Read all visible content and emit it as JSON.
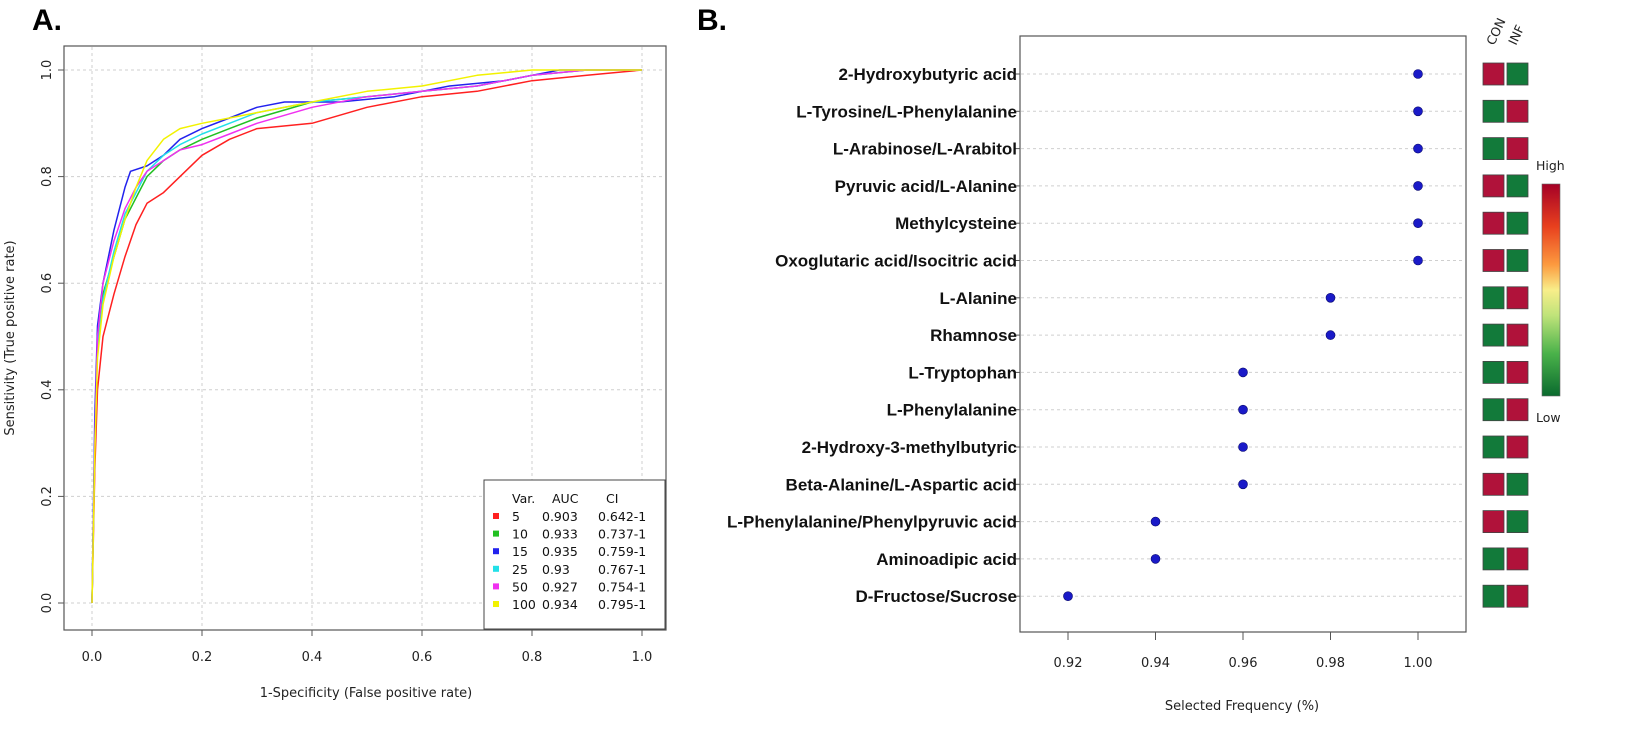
{
  "panels": {
    "a_label": "A.",
    "b_label": "B."
  },
  "chart_data": [
    {
      "type": "line",
      "title": "",
      "xlabel": "1-Specificity (False positive rate)",
      "ylabel": "Sensitivity (True positive rate)",
      "xlim": [
        0,
        1
      ],
      "ylim": [
        0,
        1
      ],
      "xticks": [
        "0.0",
        "0.2",
        "0.4",
        "0.6",
        "0.8",
        "1.0"
      ],
      "yticks": [
        "0.0",
        "0.2",
        "0.4",
        "0.6",
        "0.8",
        "1.0"
      ],
      "grid": true,
      "legend_position": "bottom-right",
      "legend_header": {
        "var": "Var.",
        "auc": "AUC",
        "ci": "CI"
      },
      "series": [
        {
          "name": "5",
          "auc": "0.903",
          "ci": "0.642-1",
          "color": "#ff2020",
          "points": [
            [
              0,
              0
            ],
            [
              0.005,
              0.25
            ],
            [
              0.01,
              0.4
            ],
            [
              0.02,
              0.5
            ],
            [
              0.04,
              0.58
            ],
            [
              0.06,
              0.65
            ],
            [
              0.08,
              0.71
            ],
            [
              0.1,
              0.75
            ],
            [
              0.13,
              0.77
            ],
            [
              0.16,
              0.8
            ],
            [
              0.2,
              0.84
            ],
            [
              0.25,
              0.87
            ],
            [
              0.3,
              0.89
            ],
            [
              0.4,
              0.9
            ],
            [
              0.5,
              0.93
            ],
            [
              0.6,
              0.95
            ],
            [
              0.7,
              0.96
            ],
            [
              0.8,
              0.98
            ],
            [
              0.9,
              0.99
            ],
            [
              1,
              1
            ]
          ]
        },
        {
          "name": "10",
          "auc": "0.933",
          "ci": "0.737-1",
          "color": "#22c022",
          "points": [
            [
              0,
              0
            ],
            [
              0.005,
              0.3
            ],
            [
              0.01,
              0.5
            ],
            [
              0.02,
              0.58
            ],
            [
              0.04,
              0.65
            ],
            [
              0.06,
              0.72
            ],
            [
              0.08,
              0.76
            ],
            [
              0.1,
              0.8
            ],
            [
              0.13,
              0.83
            ],
            [
              0.16,
              0.85
            ],
            [
              0.2,
              0.87
            ],
            [
              0.25,
              0.89
            ],
            [
              0.3,
              0.91
            ],
            [
              0.4,
              0.94
            ],
            [
              0.5,
              0.95
            ],
            [
              0.6,
              0.96
            ],
            [
              0.7,
              0.97
            ],
            [
              0.8,
              0.99
            ],
            [
              0.9,
              1
            ],
            [
              1,
              1
            ]
          ]
        },
        {
          "name": "15",
          "auc": "0.935",
          "ci": "0.759-1",
          "color": "#2222ee",
          "points": [
            [
              0,
              0
            ],
            [
              0.005,
              0.35
            ],
            [
              0.01,
              0.52
            ],
            [
              0.02,
              0.6
            ],
            [
              0.04,
              0.7
            ],
            [
              0.06,
              0.78
            ],
            [
              0.07,
              0.81
            ],
            [
              0.1,
              0.82
            ],
            [
              0.13,
              0.84
            ],
            [
              0.16,
              0.87
            ],
            [
              0.2,
              0.89
            ],
            [
              0.25,
              0.91
            ],
            [
              0.3,
              0.93
            ],
            [
              0.35,
              0.94
            ],
            [
              0.45,
              0.94
            ],
            [
              0.55,
              0.95
            ],
            [
              0.65,
              0.97
            ],
            [
              0.75,
              0.98
            ],
            [
              0.85,
              1
            ],
            [
              1,
              1
            ]
          ]
        },
        {
          "name": "25",
          "auc": "0.93",
          "ci": "0.767-1",
          "color": "#22e0e8",
          "points": [
            [
              0,
              0
            ],
            [
              0.005,
              0.3
            ],
            [
              0.01,
              0.48
            ],
            [
              0.02,
              0.57
            ],
            [
              0.04,
              0.66
            ],
            [
              0.06,
              0.73
            ],
            [
              0.08,
              0.77
            ],
            [
              0.1,
              0.81
            ],
            [
              0.13,
              0.84
            ],
            [
              0.16,
              0.86
            ],
            [
              0.2,
              0.88
            ],
            [
              0.25,
              0.9
            ],
            [
              0.3,
              0.92
            ],
            [
              0.4,
              0.94
            ],
            [
              0.5,
              0.95
            ],
            [
              0.6,
              0.96
            ],
            [
              0.7,
              0.97
            ],
            [
              0.8,
              0.99
            ],
            [
              0.9,
              1
            ],
            [
              1,
              1
            ]
          ]
        },
        {
          "name": "50",
          "auc": "0.927",
          "ci": "0.754-1",
          "color": "#f030f0",
          "points": [
            [
              0,
              0
            ],
            [
              0.005,
              0.3
            ],
            [
              0.01,
              0.5
            ],
            [
              0.02,
              0.6
            ],
            [
              0.04,
              0.68
            ],
            [
              0.06,
              0.74
            ],
            [
              0.08,
              0.78
            ],
            [
              0.1,
              0.81
            ],
            [
              0.13,
              0.83
            ],
            [
              0.16,
              0.85
            ],
            [
              0.2,
              0.86
            ],
            [
              0.25,
              0.88
            ],
            [
              0.3,
              0.9
            ],
            [
              0.4,
              0.93
            ],
            [
              0.5,
              0.95
            ],
            [
              0.6,
              0.96
            ],
            [
              0.7,
              0.97
            ],
            [
              0.8,
              0.99
            ],
            [
              0.9,
              1
            ],
            [
              1,
              1
            ]
          ]
        },
        {
          "name": "100",
          "auc": "0.934",
          "ci": "0.795-1",
          "color": "#f2f200",
          "points": [
            [
              0,
              0
            ],
            [
              0.005,
              0.28
            ],
            [
              0.01,
              0.46
            ],
            [
              0.02,
              0.56
            ],
            [
              0.04,
              0.65
            ],
            [
              0.06,
              0.72
            ],
            [
              0.08,
              0.78
            ],
            [
              0.1,
              0.83
            ],
            [
              0.13,
              0.87
            ],
            [
              0.16,
              0.89
            ],
            [
              0.2,
              0.9
            ],
            [
              0.25,
              0.91
            ],
            [
              0.3,
              0.92
            ],
            [
              0.4,
              0.94
            ],
            [
              0.5,
              0.96
            ],
            [
              0.6,
              0.97
            ],
            [
              0.7,
              0.99
            ],
            [
              0.8,
              1
            ],
            [
              0.9,
              1
            ],
            [
              1,
              1
            ]
          ]
        }
      ]
    },
    {
      "type": "scatter",
      "title": "",
      "xlabel": "Selected Frequency (%)",
      "ylabel": "",
      "xlim": [
        0.91,
        1.01
      ],
      "xticks": [
        "0.92",
        "0.94",
        "0.96",
        "0.98",
        "1.00"
      ],
      "grid": true,
      "point_color": "#1a1ac8",
      "features": [
        {
          "name": "2-Hydroxybutyric acid",
          "value": 1.0,
          "con": "high",
          "inf": "low"
        },
        {
          "name": "L-Tyrosine/L-Phenylalanine",
          "value": 1.0,
          "con": "low",
          "inf": "high"
        },
        {
          "name": "L-Arabinose/L-Arabitol",
          "value": 1.0,
          "con": "low",
          "inf": "high"
        },
        {
          "name": "Pyruvic acid/L-Alanine",
          "value": 1.0,
          "con": "high",
          "inf": "low"
        },
        {
          "name": "Methylcysteine",
          "value": 1.0,
          "con": "high",
          "inf": "low"
        },
        {
          "name": "Oxoglutaric acid/Isocitric acid",
          "value": 1.0,
          "con": "high",
          "inf": "low"
        },
        {
          "name": "L-Alanine",
          "value": 0.98,
          "con": "low",
          "inf": "high"
        },
        {
          "name": "Rhamnose",
          "value": 0.98,
          "con": "low",
          "inf": "high"
        },
        {
          "name": "L-Tryptophan",
          "value": 0.96,
          "con": "low",
          "inf": "high"
        },
        {
          "name": "L-Phenylalanine",
          "value": 0.96,
          "con": "low",
          "inf": "high"
        },
        {
          "name": "2-Hydroxy-3-methylbutyric",
          "value": 0.96,
          "con": "low",
          "inf": "high"
        },
        {
          "name": "Beta-Alanine/L-Aspartic acid",
          "value": 0.96,
          "con": "high",
          "inf": "low"
        },
        {
          "name": "L-Phenylalanine/Phenylpyruvic acid",
          "value": 0.94,
          "con": "high",
          "inf": "low"
        },
        {
          "name": "Aminoadipic acid",
          "value": 0.94,
          "con": "low",
          "inf": "high"
        },
        {
          "name": "D-Fructose/Sucrose",
          "value": 0.92,
          "con": "low",
          "inf": "high"
        }
      ],
      "heatmap": {
        "columns": [
          "CON",
          "INF"
        ],
        "colorbar_high": "High",
        "colorbar_low": "Low",
        "high_color": "#b0123a",
        "low_color": "#127a3a"
      }
    }
  ]
}
